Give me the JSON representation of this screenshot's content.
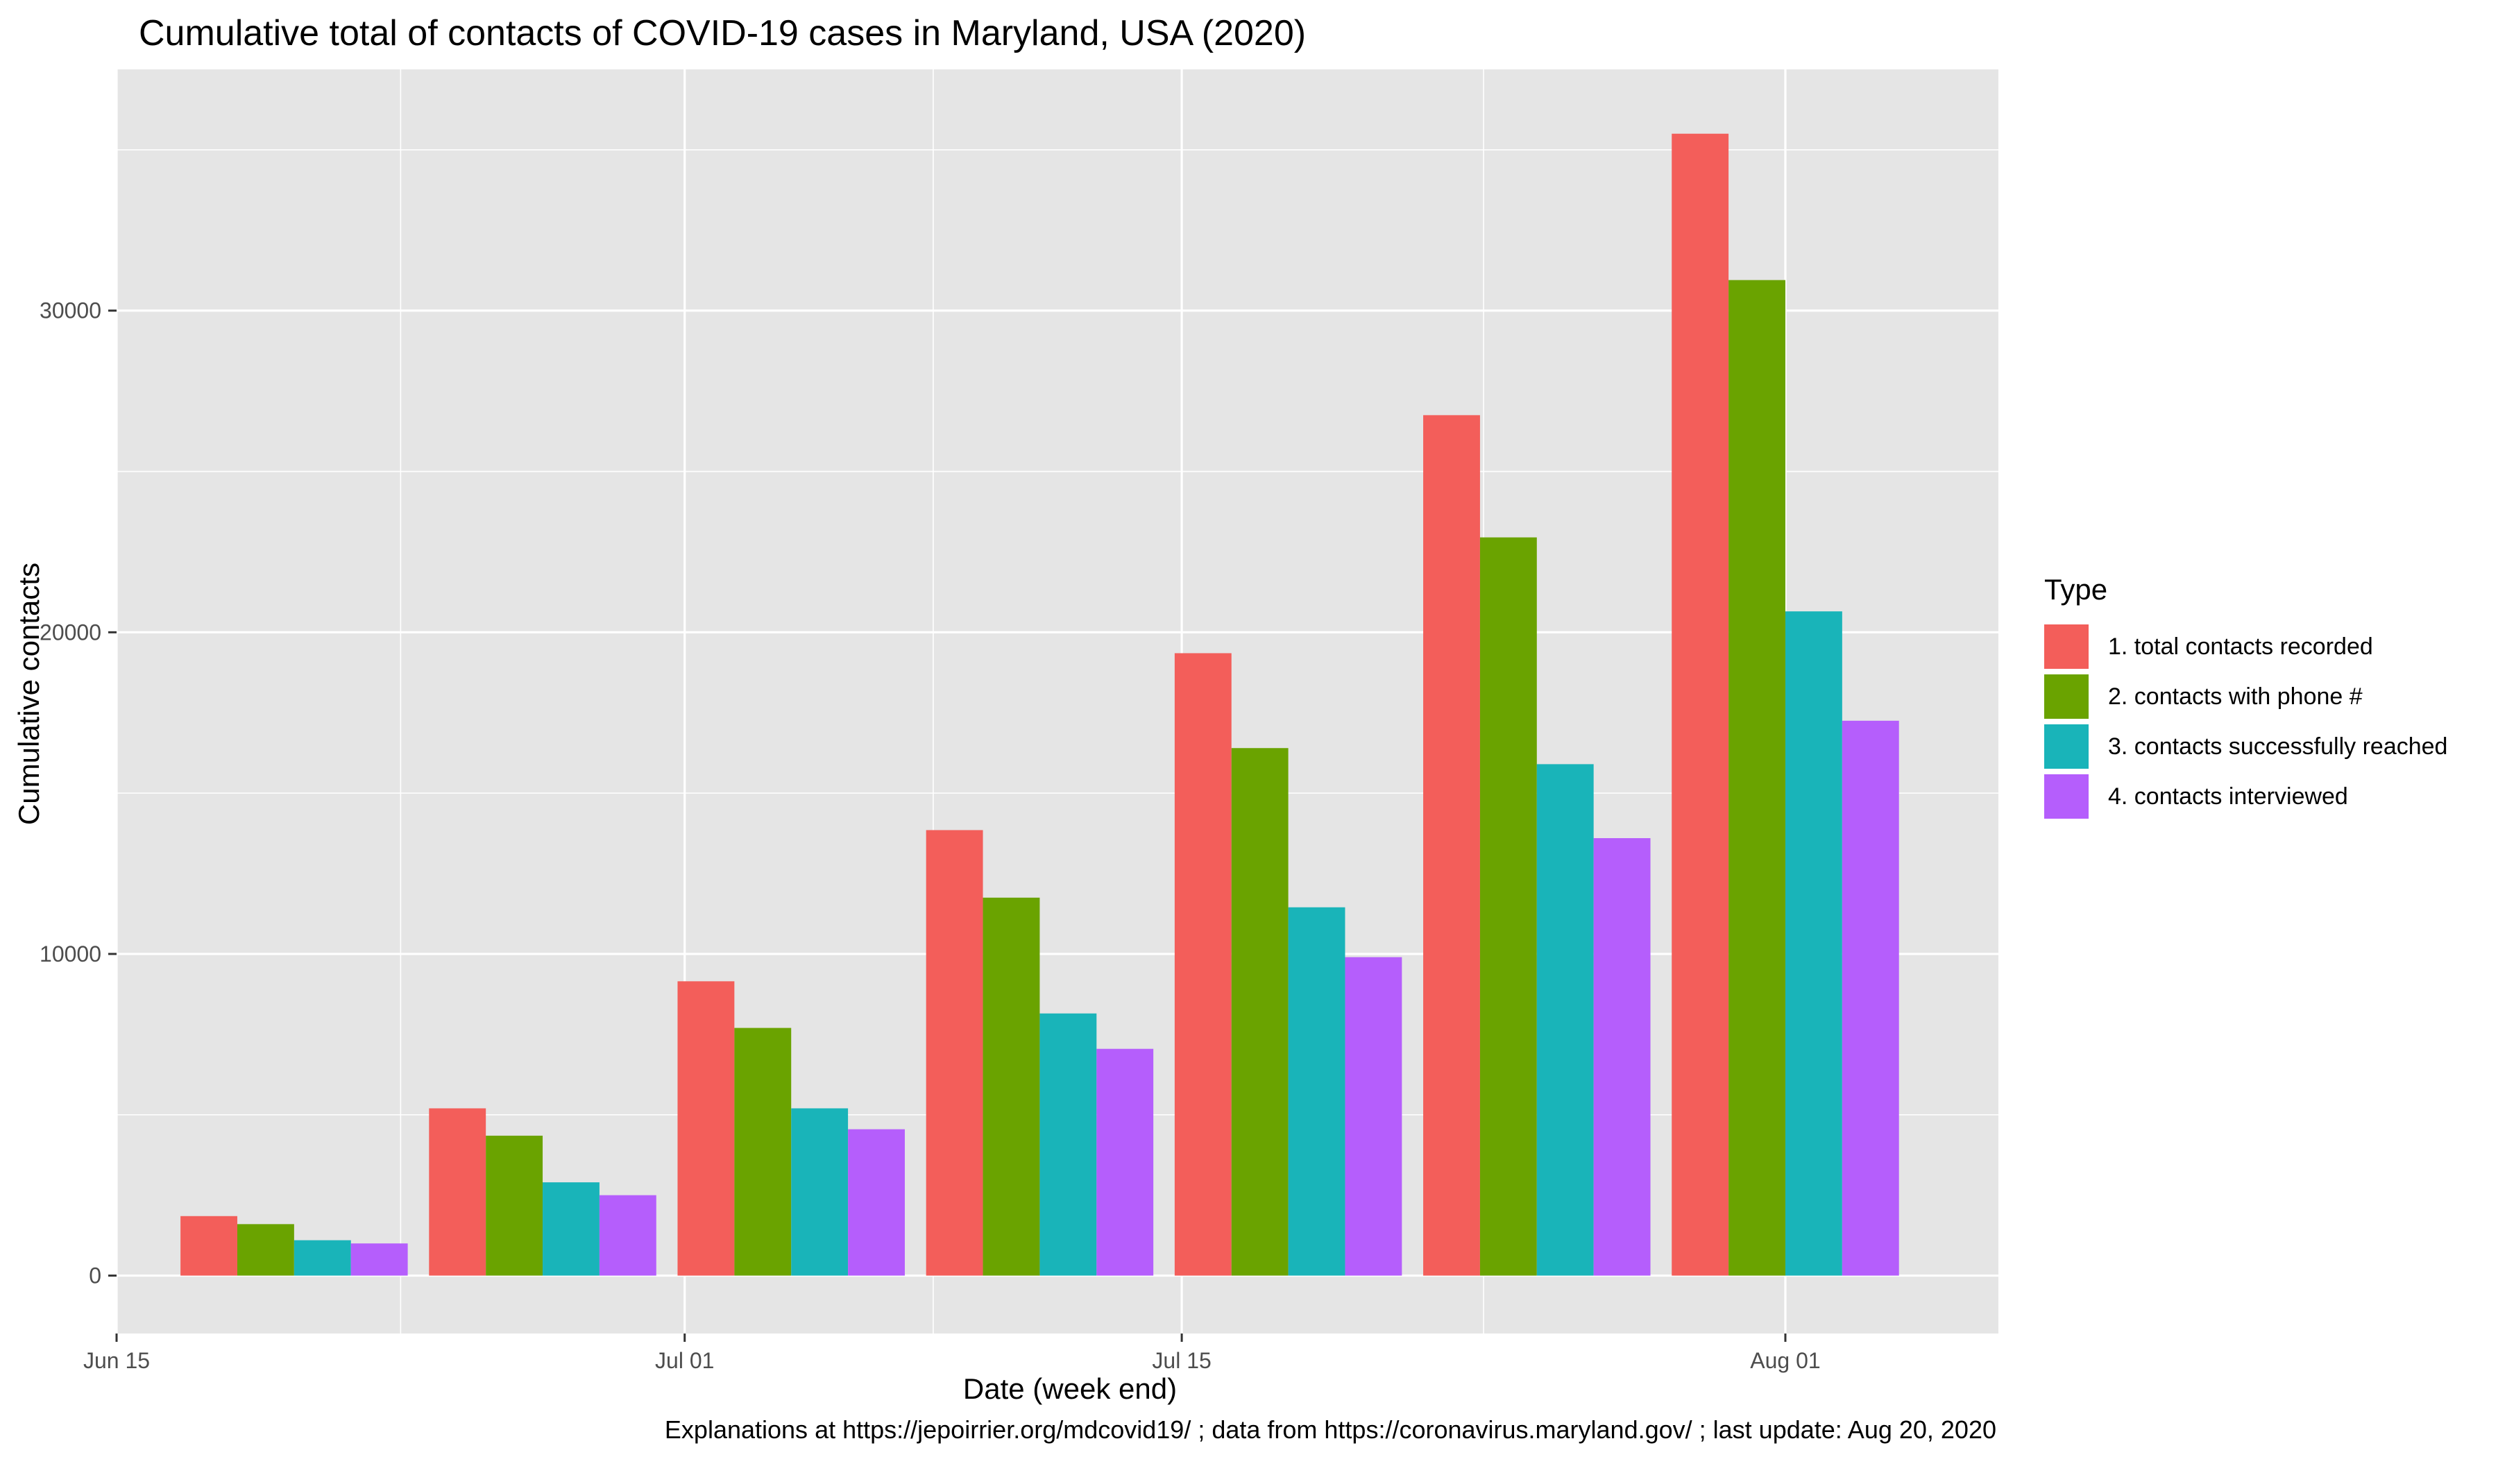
{
  "colors": {
    "panel_background": "#e5e5e5",
    "grid": "#ffffff",
    "series": [
      "#f35e5a",
      "#6aa300",
      "#19b4b9",
      "#b55efc"
    ]
  },
  "labels": {
    "caption": "Explanations at https://jepoirrier.org/mdcovid19/ ; data from https://coronavirus.maryland.gov/ ; last update: Aug 20, 2020"
  },
  "chart_data": {
    "type": "bar",
    "title": "Cumulative total of contacts of COVID-19 cases in Maryland, USA (2020)",
    "xlabel": "Date (week end)",
    "ylabel": "Cumulative contacts",
    "x_axis_type": "date",
    "xlim": [
      "2020-06-15",
      "2020-08-07"
    ],
    "x_ticks": [
      {
        "date": "2020-06-15",
        "label": "Jun 15"
      },
      {
        "date": "2020-07-01",
        "label": "Jul 01"
      },
      {
        "date": "2020-07-15",
        "label": "Jul 15"
      },
      {
        "date": "2020-08-01",
        "label": "Aug 01"
      }
    ],
    "ylim": [
      -1800,
      37500
    ],
    "y_ticks": [
      0,
      10000,
      20000,
      30000
    ],
    "categories": [
      "2020-06-20",
      "2020-06-27",
      "2020-07-04",
      "2020-07-11",
      "2020-07-18",
      "2020-07-25",
      "2020-08-01"
    ],
    "legend_title": "Type",
    "legend_position": "right",
    "grid": true,
    "series": [
      {
        "name": "1. total contacts recorded",
        "values": [
          1850,
          5200,
          9150,
          13850,
          19350,
          26750,
          35500
        ]
      },
      {
        "name": "2. contacts with phone #",
        "values": [
          1600,
          4350,
          7700,
          11750,
          16400,
          22950,
          30950
        ]
      },
      {
        "name": "3. contacts successfully reached",
        "values": [
          1100,
          2900,
          5200,
          8150,
          11450,
          15900,
          20650
        ]
      },
      {
        "name": "4. contacts interviewed",
        "values": [
          1000,
          2500,
          4550,
          7050,
          9900,
          13600,
          17250
        ]
      }
    ]
  }
}
